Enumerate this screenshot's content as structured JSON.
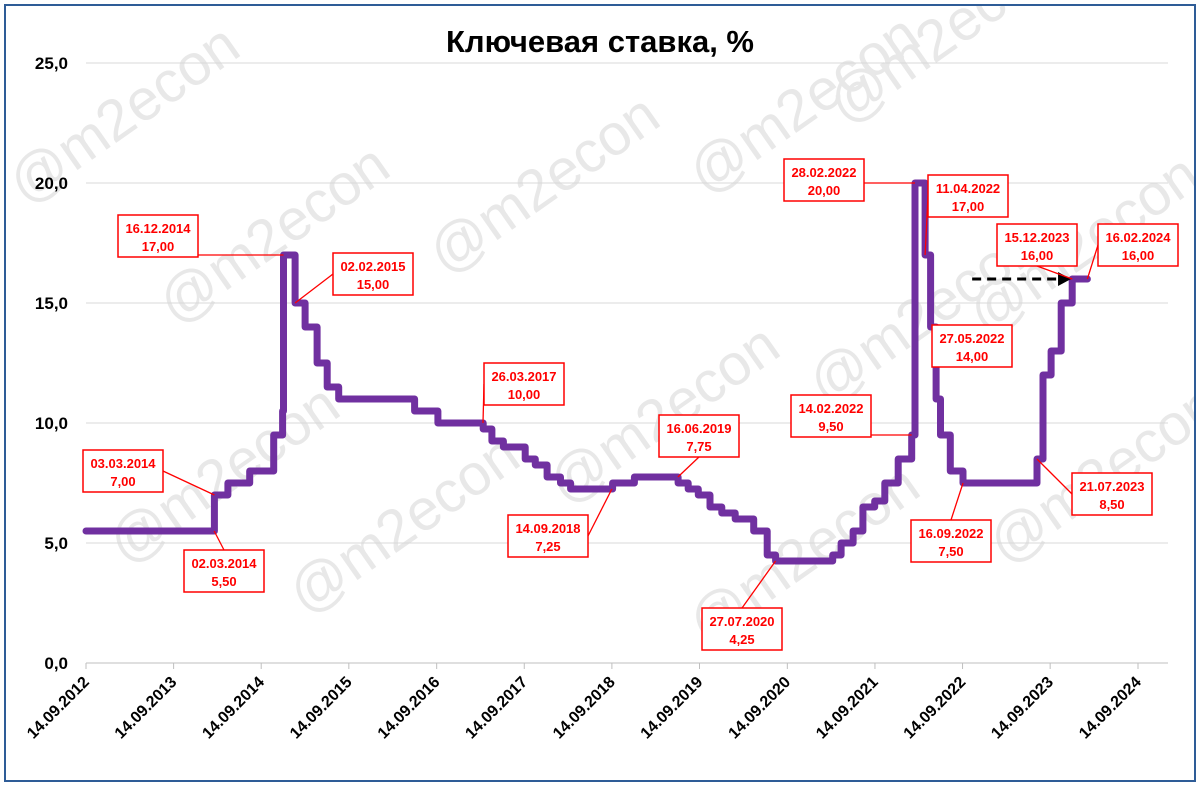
{
  "chart_data": {
    "type": "line",
    "title": "Ключевая ставка, %",
    "xlabel": "",
    "ylabel": "",
    "ylim": [
      0,
      25
    ],
    "ytick_labels": [
      "0,0",
      "5,0",
      "10,0",
      "15,0",
      "20,0",
      "25,0"
    ],
    "yticks": [
      0,
      5,
      10,
      15,
      20,
      25
    ],
    "xlim": [
      "2012-09-14",
      "2024-09-14"
    ],
    "xticks": [
      "2012-09-14",
      "2013-09-14",
      "2014-09-14",
      "2015-09-14",
      "2016-09-14",
      "2017-09-14",
      "2018-09-14",
      "2019-09-14",
      "2020-09-14",
      "2021-09-14",
      "2022-09-14",
      "2023-09-14",
      "2024-09-14"
    ],
    "xtick_labels": [
      "14.09.2012",
      "14.09.2013",
      "14.09.2014",
      "14.09.2015",
      "14.09.2016",
      "14.09.2017",
      "14.09.2018",
      "14.09.2019",
      "14.09.2020",
      "14.09.2021",
      "14.09.2022",
      "14.09.2023",
      "14.09.2024"
    ],
    "grid": true,
    "legend": "none",
    "series_color": "#7030a0",
    "annotation_color": "#ff0000",
    "series": [
      {
        "step": true,
        "points": [
          {
            "x": "2013-09-13",
            "y": 5.5
          },
          {
            "x": "2014-03-03",
            "y": 7.0
          },
          {
            "x": "2014-04-28",
            "y": 7.5
          },
          {
            "x": "2014-07-28",
            "y": 8.0
          },
          {
            "x": "2014-11-05",
            "y": 9.5
          },
          {
            "x": "2014-12-12",
            "y": 10.5
          },
          {
            "x": "2014-12-16",
            "y": 17.0
          },
          {
            "x": "2015-02-02",
            "y": 15.0
          },
          {
            "x": "2015-03-16",
            "y": 14.0
          },
          {
            "x": "2015-05-05",
            "y": 12.5
          },
          {
            "x": "2015-06-16",
            "y": 11.5
          },
          {
            "x": "2015-08-03",
            "y": 11.0
          },
          {
            "x": "2016-06-14",
            "y": 10.5
          },
          {
            "x": "2016-09-19",
            "y": 10.0
          },
          {
            "x": "2017-03-27",
            "y": 9.75
          },
          {
            "x": "2017-05-02",
            "y": 9.25
          },
          {
            "x": "2017-06-19",
            "y": 9.0
          },
          {
            "x": "2017-09-18",
            "y": 8.5
          },
          {
            "x": "2017-10-30",
            "y": 8.25
          },
          {
            "x": "2017-12-18",
            "y": 7.75
          },
          {
            "x": "2018-02-12",
            "y": 7.5
          },
          {
            "x": "2018-03-26",
            "y": 7.25
          },
          {
            "x": "2018-09-17",
            "y": 7.5
          },
          {
            "x": "2018-12-17",
            "y": 7.75
          },
          {
            "x": "2019-06-17",
            "y": 7.5
          },
          {
            "x": "2019-07-29",
            "y": 7.25
          },
          {
            "x": "2019-09-09",
            "y": 7.0
          },
          {
            "x": "2019-10-28",
            "y": 6.5
          },
          {
            "x": "2019-12-16",
            "y": 6.25
          },
          {
            "x": "2020-02-10",
            "y": 6.0
          },
          {
            "x": "2020-04-27",
            "y": 5.5
          },
          {
            "x": "2020-06-22",
            "y": 4.5
          },
          {
            "x": "2020-07-27",
            "y": 4.25
          },
          {
            "x": "2021-03-22",
            "y": 4.5
          },
          {
            "x": "2021-04-26",
            "y": 5.0
          },
          {
            "x": "2021-06-15",
            "y": 5.5
          },
          {
            "x": "2021-07-26",
            "y": 6.5
          },
          {
            "x": "2021-09-13",
            "y": 6.75
          },
          {
            "x": "2021-10-25",
            "y": 7.5
          },
          {
            "x": "2021-12-20",
            "y": 8.5
          },
          {
            "x": "2022-02-14",
            "y": 9.5
          },
          {
            "x": "2022-02-28",
            "y": 20.0
          },
          {
            "x": "2022-04-11",
            "y": 17.0
          },
          {
            "x": "2022-05-04",
            "y": 14.0
          },
          {
            "x": "2022-05-27",
            "y": 11.0
          },
          {
            "x": "2022-06-14",
            "y": 9.5
          },
          {
            "x": "2022-07-25",
            "y": 8.0
          },
          {
            "x": "2022-09-16",
            "y": 7.5
          },
          {
            "x": "2023-07-21",
            "y": 8.5
          },
          {
            "x": "2023-08-15",
            "y": 12.0
          },
          {
            "x": "2023-09-18",
            "y": 13.0
          },
          {
            "x": "2023-10-30",
            "y": 15.0
          },
          {
            "x": "2023-12-15",
            "y": 16.0
          },
          {
            "x": "2024-02-16",
            "y": 16.0
          }
        ]
      }
    ],
    "annotations": [
      {
        "date_label": "02.03.2014",
        "value_label": "5,50",
        "x": "2014-03-02",
        "y": 5.5
      },
      {
        "date_label": "03.03.2014",
        "value_label": "7,00",
        "x": "2014-03-03",
        "y": 7.0
      },
      {
        "date_label": "16.12.2014",
        "value_label": "17,00",
        "x": "2014-12-16",
        "y": 17.0
      },
      {
        "date_label": "02.02.2015",
        "value_label": "15,00",
        "x": "2015-02-02",
        "y": 15.0
      },
      {
        "date_label": "26.03.2017",
        "value_label": "10,00",
        "x": "2017-03-26",
        "y": 10.0
      },
      {
        "date_label": "14.09.2018",
        "value_label": "7,25",
        "x": "2018-09-14",
        "y": 7.25
      },
      {
        "date_label": "16.06.2019",
        "value_label": "7,75",
        "x": "2019-06-16",
        "y": 7.75
      },
      {
        "date_label": "27.07.2020",
        "value_label": "4,25",
        "x": "2020-07-27",
        "y": 4.25
      },
      {
        "date_label": "14.02.2022",
        "value_label": "9,50",
        "x": "2022-02-14",
        "y": 9.5
      },
      {
        "date_label": "28.02.2022",
        "value_label": "20,00",
        "x": "2022-02-28",
        "y": 20.0
      },
      {
        "date_label": "11.04.2022",
        "value_label": "17,00",
        "x": "2022-04-11",
        "y": 17.0
      },
      {
        "date_label": "27.05.2022",
        "value_label": "14,00",
        "x": "2022-05-27",
        "y": 14.0
      },
      {
        "date_label": "16.09.2022",
        "value_label": "7,50",
        "x": "2022-09-16",
        "y": 7.5
      },
      {
        "date_label": "21.07.2023",
        "value_label": "8,50",
        "x": "2023-07-21",
        "y": 8.5
      },
      {
        "date_label": "15.12.2023",
        "value_label": "16,00",
        "x": "2023-12-15",
        "y": 16.0
      },
      {
        "date_label": "16.02.2024",
        "value_label": "16,00",
        "x": "2024-02-16",
        "y": 16.0
      }
    ],
    "dashed_arrow": {
      "x_from": "2022-10-24",
      "x_to": "2023-12-10",
      "y": 16.0
    }
  },
  "watermark": "@m2econ"
}
